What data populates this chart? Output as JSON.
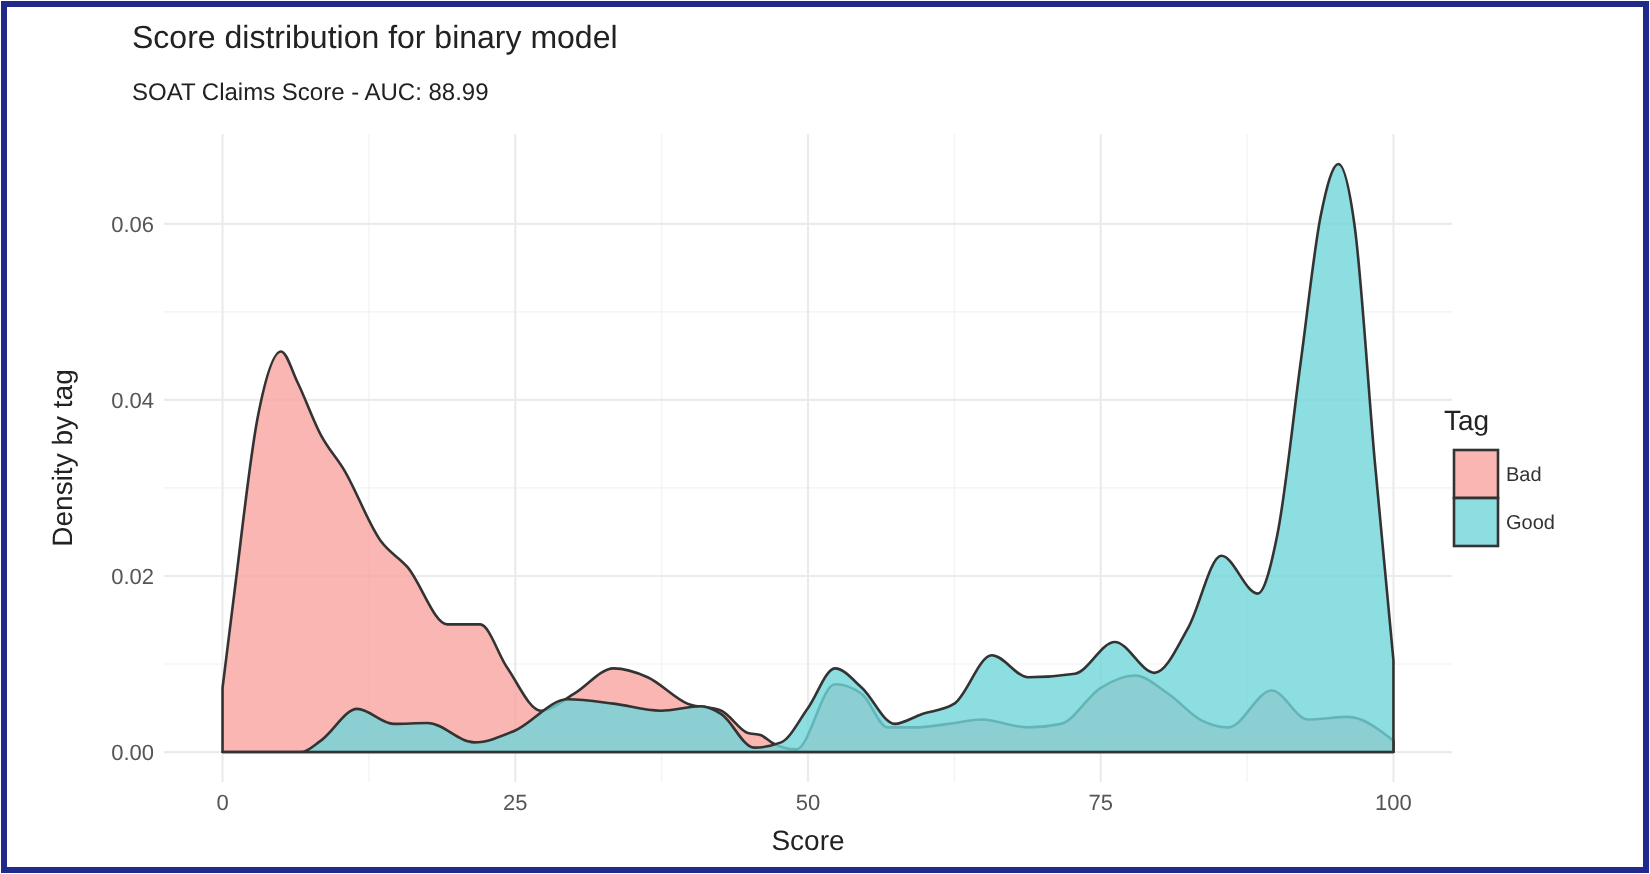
{
  "chart_data": {
    "type": "area",
    "title": "Score distribution for binary model",
    "subtitle": "SOAT Claims Score - AUC: 88.99",
    "xlabel": "Score",
    "ylabel": "Density by tag",
    "legend_title": "Tag",
    "legend": "right",
    "grid": true,
    "xlim": [
      -5,
      105
    ],
    "xticks": [
      0,
      25,
      50,
      75,
      100
    ],
    "ylim": [
      -0.0034,
      0.0702
    ],
    "yticks": [
      {
        "value": 0,
        "label": "0.00"
      },
      {
        "value": 0.02,
        "label": "0.02"
      },
      {
        "value": 0.04,
        "label": "0.04"
      },
      {
        "value": 0.06,
        "label": "0.06"
      }
    ],
    "series": [
      {
        "name": "Bad",
        "color": "#f8a4a0",
        "x": [
          0,
          1,
          3,
          5,
          6.4,
          8.4,
          10.4,
          13.5,
          15.8,
          19.2,
          22,
          24.3,
          27.2,
          30,
          33.4,
          36.3,
          39.7,
          42.6,
          44.8,
          46,
          47,
          49,
          52.3,
          54.6,
          56.8,
          59.1,
          62,
          64.8,
          68.8,
          71.6,
          75,
          77.9,
          80.8,
          83.6,
          85.9,
          89.6,
          92.7,
          96.1,
          100
        ],
        "values": [
          0.0073,
          0.018,
          0.038,
          0.0455,
          0.042,
          0.036,
          0.032,
          0.024,
          0.021,
          0.0145,
          0.0145,
          0.0096,
          0.0047,
          0.0066,
          0.0095,
          0.0085,
          0.0055,
          0.0047,
          0.0022,
          0.0019,
          0.001,
          0.0003,
          0.0077,
          0.0066,
          0.0028,
          0.0028,
          0.0032,
          0.0037,
          0.0028,
          0.0032,
          0.0073,
          0.0087,
          0.0066,
          0.0036,
          0.0028,
          0.007,
          0.0037,
          0.004,
          0.0013
        ]
      },
      {
        "name": "Good",
        "color": "#6fd6d9",
        "x": [
          0,
          6.7,
          8.4,
          11.5,
          14.6,
          17.5,
          21.5,
          24.9,
          29.5,
          33.4,
          37.4,
          40.9,
          42.6,
          45.4,
          47.7,
          50,
          52.3,
          54.6,
          57.4,
          59.7,
          62.5,
          65.7,
          68.8,
          72.8,
          76.2,
          79.6,
          82.5,
          85.3,
          88.4,
          90.1,
          92.1,
          93.8,
          95.3,
          96.7,
          98.4,
          100
        ],
        "values": [
          0,
          0,
          0.0013,
          0.0049,
          0.0032,
          0.0033,
          0.0011,
          0.0024,
          0.006,
          0.0055,
          0.0047,
          0.0052,
          0.0043,
          0.0005,
          0.0011,
          0.005,
          0.0095,
          0.0073,
          0.0032,
          0.0043,
          0.0055,
          0.011,
          0.0085,
          0.0089,
          0.0125,
          0.009,
          0.0142,
          0.0223,
          0.018,
          0.0248,
          0.0445,
          0.061,
          0.0668,
          0.0596,
          0.0331,
          0.0104
        ]
      }
    ]
  }
}
